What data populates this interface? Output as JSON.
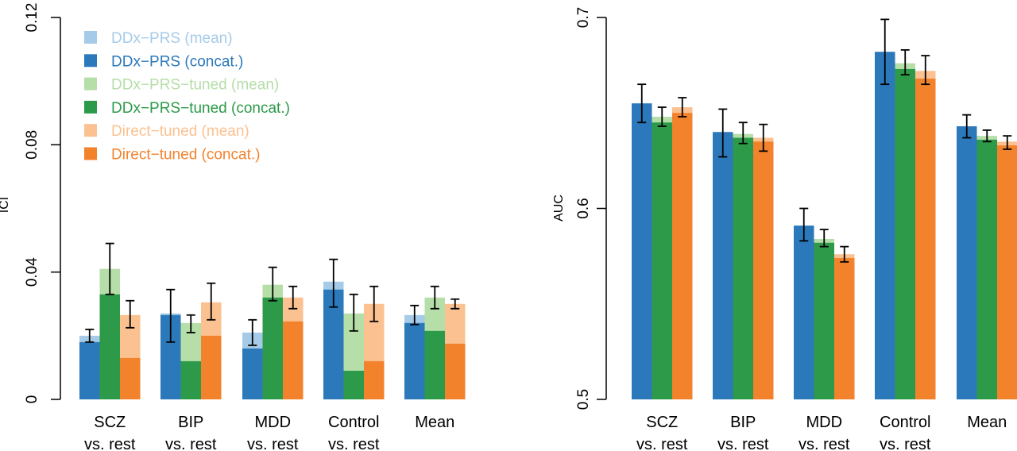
{
  "colors": {
    "ddx_mean": "#a6cbe8",
    "ddx_concat": "#2b79ba",
    "tuned_mean": "#b5dea8",
    "tuned_concat": "#2d9a49",
    "direct_mean": "#fbc190",
    "direct_concat": "#f3822c",
    "axis": "#000000"
  },
  "chart_data": [
    {
      "type": "bar",
      "title": "",
      "xlabel": "",
      "ylabel": "ICI",
      "ylim": [
        0,
        0.12
      ],
      "yticks": [
        "0",
        "0.04",
        "0.08",
        "0.12"
      ],
      "ytick_values": [
        0,
        0.04,
        0.08,
        0.12
      ],
      "categories": [
        [
          "SCZ",
          "vs. rest"
        ],
        [
          "BIP",
          "vs. rest"
        ],
        [
          "MDD",
          "vs. rest"
        ],
        [
          "Control",
          "vs. rest"
        ],
        [
          "Mean",
          ""
        ]
      ],
      "legend": [
        {
          "label": "DDx−PRS (mean)",
          "color_key": "ddx_mean"
        },
        {
          "label": "DDx−PRS (concat.)",
          "color_key": "ddx_concat"
        },
        {
          "label": "DDx−PRS−tuned (mean)",
          "color_key": "tuned_mean"
        },
        {
          "label": "DDx−PRS−tuned (concat.)",
          "color_key": "tuned_concat"
        },
        {
          "label": "Direct−tuned (mean)",
          "color_key": "direct_mean"
        },
        {
          "label": "Direct−tuned (concat.)",
          "color_key": "direct_concat"
        }
      ],
      "legend_position": "top-left",
      "series": [
        {
          "name": "DDx−PRS (mean)",
          "color_key": "ddx_mean",
          "values": [
            0.02,
            0.027,
            0.021,
            0.037,
            0.0265
          ],
          "err_low": [
            0.018,
            0.018,
            0.017,
            0.029,
            0.0235
          ],
          "err_high": [
            0.022,
            0.0345,
            0.025,
            0.044,
            0.0295
          ]
        },
        {
          "name": "DDx−PRS (concat.)",
          "color_key": "ddx_concat",
          "values": [
            0.018,
            0.0265,
            0.016,
            0.0345,
            0.024
          ]
        },
        {
          "name": "DDx−PRS−tuned (mean)",
          "color_key": "tuned_mean",
          "values": [
            0.041,
            0.024,
            0.036,
            0.027,
            0.032
          ],
          "err_low": [
            0.033,
            0.021,
            0.031,
            0.0215,
            0.0285
          ],
          "err_high": [
            0.049,
            0.0265,
            0.0415,
            0.033,
            0.0355
          ]
        },
        {
          "name": "DDx−PRS−tuned (concat.)",
          "color_key": "tuned_concat",
          "values": [
            0.033,
            0.012,
            0.032,
            0.009,
            0.0215
          ]
        },
        {
          "name": "Direct−tuned (mean)",
          "color_key": "direct_mean",
          "values": [
            0.0265,
            0.0305,
            0.032,
            0.03,
            0.03
          ],
          "err_low": [
            0.0225,
            0.025,
            0.0285,
            0.0245,
            0.0285
          ],
          "err_high": [
            0.031,
            0.0365,
            0.0355,
            0.0355,
            0.0315
          ]
        },
        {
          "name": "Direct−tuned (concat.)",
          "color_key": "direct_concat",
          "values": [
            0.013,
            0.02,
            0.0245,
            0.012,
            0.0175
          ]
        }
      ]
    },
    {
      "type": "bar",
      "title": "",
      "xlabel": "",
      "ylabel": "AUC",
      "ylim": [
        0.5,
        0.7
      ],
      "yticks": [
        "0.5",
        "0.6",
        "0.7"
      ],
      "ytick_values": [
        0.5,
        0.6,
        0.7
      ],
      "categories": [
        [
          "SCZ",
          "vs. rest"
        ],
        [
          "BIP",
          "vs. rest"
        ],
        [
          "MDD",
          "vs. rest"
        ],
        [
          "Control",
          "vs. rest"
        ],
        [
          "Mean",
          ""
        ]
      ],
      "series": [
        {
          "name": "DDx−PRS (mean)",
          "color_key": "ddx_mean",
          "values": [
            0.655,
            0.64,
            0.591,
            0.682,
            0.643
          ],
          "err_low": [
            0.645,
            0.627,
            0.583,
            0.665,
            0.637
          ],
          "err_high": [
            0.665,
            0.652,
            0.6,
            0.699,
            0.649
          ]
        },
        {
          "name": "DDx−PRS (concat.)",
          "color_key": "ddx_concat",
          "values": [
            0.655,
            0.64,
            0.591,
            0.682,
            0.643
          ]
        },
        {
          "name": "DDx−PRS−tuned (mean)",
          "color_key": "tuned_mean",
          "values": [
            0.648,
            0.639,
            0.584,
            0.676,
            0.638
          ],
          "err_low": [
            0.643,
            0.634,
            0.58,
            0.67,
            0.635
          ],
          "err_high": [
            0.653,
            0.645,
            0.589,
            0.683,
            0.641
          ]
        },
        {
          "name": "DDx−PRS−tuned (concat.)",
          "color_key": "tuned_concat",
          "values": [
            0.645,
            0.637,
            0.582,
            0.673,
            0.636
          ]
        },
        {
          "name": "Direct−tuned (mean)",
          "color_key": "direct_mean",
          "values": [
            0.653,
            0.637,
            0.576,
            0.672,
            0.635
          ],
          "err_low": [
            0.648,
            0.63,
            0.572,
            0.665,
            0.631
          ],
          "err_high": [
            0.658,
            0.644,
            0.58,
            0.68,
            0.638
          ]
        },
        {
          "name": "Direct−tuned (concat.)",
          "color_key": "direct_concat",
          "values": [
            0.65,
            0.635,
            0.574,
            0.668,
            0.633
          ]
        }
      ]
    }
  ]
}
